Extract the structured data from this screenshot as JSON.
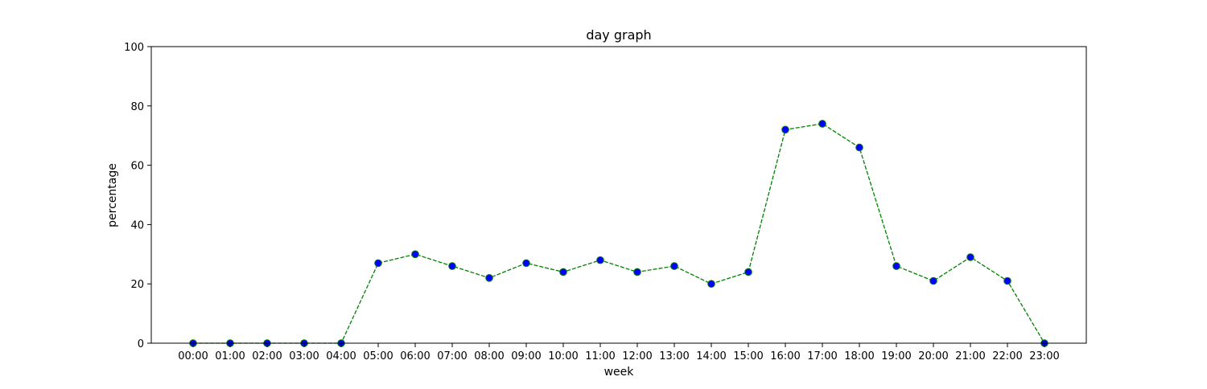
{
  "chart_data": {
    "type": "line",
    "title": "day graph",
    "xlabel": "week",
    "ylabel": "percentage",
    "ylim": [
      0,
      100
    ],
    "yticks": [
      "0",
      "20",
      "40",
      "60",
      "80",
      "100"
    ],
    "grid": false,
    "categories": [
      "00:00",
      "01:00",
      "02:00",
      "03:00",
      "04:00",
      "05:00",
      "06:00",
      "07:00",
      "08:00",
      "09:00",
      "10:00",
      "11:00",
      "12:00",
      "13:00",
      "14:00",
      "15:00",
      "16:00",
      "17:00",
      "18:00",
      "19:00",
      "20:00",
      "21:00",
      "22:00",
      "23:00"
    ],
    "series": [
      {
        "values": [
          0,
          0,
          0,
          0,
          0,
          27,
          30,
          26,
          22,
          27,
          24,
          28,
          24,
          26,
          20,
          24,
          72,
          74,
          66,
          26,
          21,
          29,
          21,
          0
        ],
        "line_color": "#008000",
        "line_style": "dashed",
        "marker": "circle",
        "marker_face_color": "#0000ff",
        "marker_edge_color": "#008000"
      }
    ]
  }
}
